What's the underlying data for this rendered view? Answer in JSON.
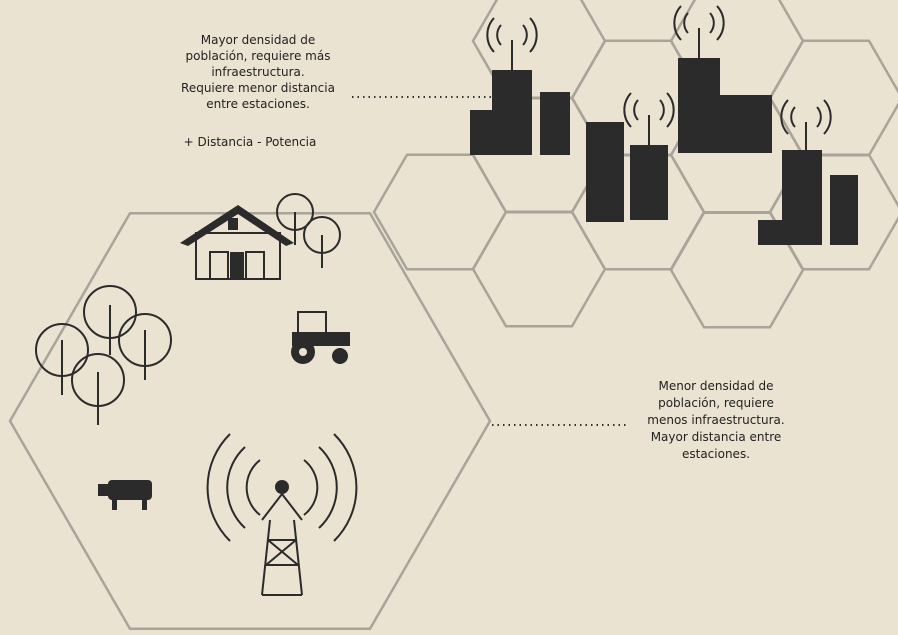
{
  "annotations": {
    "urban": {
      "lines": [
        "Mayor densidad de",
        "población, requiere más",
        "infraestructura.",
        "Requiere menor distancia",
        "entre estaciones."
      ],
      "tradeoff": "+ Distancia - Potencia"
    },
    "rural": {
      "lines": [
        "Menor densidad de",
        "población, requiere",
        "menos infraestructura.",
        "Mayor distancia entre",
        "estaciones."
      ]
    }
  }
}
